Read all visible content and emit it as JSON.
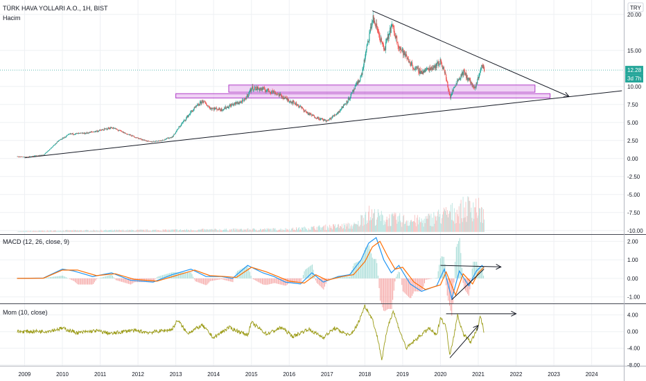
{
  "header": {
    "symbol_title": "TÜRK HAVA YOLLARI A.O., 1H, BIST",
    "volume_label": "Hacim",
    "currency_badge": "TRY"
  },
  "chart_data": [
    {
      "type": "candlestick",
      "panel": "price",
      "title": "TÜRK HAVA YOLLARI A.O., 1H, BIST",
      "ylim": [
        -10.5,
        22.0
      ],
      "y_ticks": [
        "-10.00",
        "-7.50",
        "-5.00",
        "-2.50",
        "0.00",
        "2.50",
        "5.00",
        "7.50",
        "10.00",
        "15.00",
        "20.00"
      ],
      "last_price_label": "12.28",
      "countdown_label": "3d 7h",
      "up_color": "#26a69a",
      "down_color": "#ef5350",
      "approx_close_path": [
        [
          2008.8,
          0.25
        ],
        [
          2009.0,
          0.2
        ],
        [
          2009.5,
          0.5
        ],
        [
          2009.9,
          2.5
        ],
        [
          2010.2,
          3.4
        ],
        [
          2010.6,
          3.5
        ],
        [
          2011.0,
          3.9
        ],
        [
          2011.3,
          4.3
        ],
        [
          2011.7,
          3.4
        ],
        [
          2012.0,
          2.8
        ],
        [
          2012.3,
          2.3
        ],
        [
          2012.6,
          2.5
        ],
        [
          2012.9,
          3.0
        ],
        [
          2013.1,
          4.5
        ],
        [
          2013.4,
          6.5
        ],
        [
          2013.7,
          8.0
        ],
        [
          2013.9,
          7.0
        ],
        [
          2014.2,
          6.8
        ],
        [
          2014.5,
          7.5
        ],
        [
          2014.8,
          8.0
        ],
        [
          2015.0,
          9.8
        ],
        [
          2015.3,
          9.6
        ],
        [
          2015.6,
          9.2
        ],
        [
          2015.9,
          8.3
        ],
        [
          2016.2,
          7.5
        ],
        [
          2016.5,
          6.2
        ],
        [
          2016.8,
          5.5
        ],
        [
          2017.0,
          5.2
        ],
        [
          2017.3,
          6.5
        ],
        [
          2017.6,
          8.5
        ],
        [
          2017.9,
          11.5
        ],
        [
          2018.05,
          15.5
        ],
        [
          2018.2,
          19.5
        ],
        [
          2018.35,
          17.5
        ],
        [
          2018.5,
          15.0
        ],
        [
          2018.7,
          18.5
        ],
        [
          2018.9,
          15.5
        ],
        [
          2019.1,
          14.0
        ],
        [
          2019.3,
          12.5
        ],
        [
          2019.5,
          12.0
        ],
        [
          2019.7,
          12.5
        ],
        [
          2019.9,
          13.0
        ],
        [
          2020.0,
          13.5
        ],
        [
          2020.1,
          12.0
        ],
        [
          2020.25,
          8.5
        ],
        [
          2020.4,
          10.5
        ],
        [
          2020.6,
          12.0
        ],
        [
          2020.8,
          10.5
        ],
        [
          2020.9,
          9.5
        ],
        [
          2021.0,
          11.5
        ],
        [
          2021.1,
          13.0
        ],
        [
          2021.15,
          12.3
        ]
      ],
      "annotations": {
        "rising_trendline": [
          [
            2009.0,
            0.1
          ],
          [
            2024.8,
            9.4
          ]
        ],
        "falling_trendline_arrow": [
          [
            2018.2,
            20.5
          ],
          [
            2023.4,
            8.6
          ]
        ],
        "support_rectangles": [
          {
            "x": [
              2014.4,
              2022.5
            ],
            "y": [
              10.2,
              9.2
            ]
          },
          {
            "x": [
              2013.0,
              2022.9
            ],
            "y": [
              9.0,
              8.4
            ]
          }
        ]
      },
      "volume": {
        "label": "Hacim",
        "approx_height_path": [
          [
            2008.8,
            0.02
          ],
          [
            2010.0,
            0.05
          ],
          [
            2012.0,
            0.06
          ],
          [
            2014.0,
            0.08
          ],
          [
            2016.0,
            0.1
          ],
          [
            2017.8,
            0.25
          ],
          [
            2018.0,
            0.7
          ],
          [
            2018.5,
            0.5
          ],
          [
            2019.5,
            0.4
          ],
          [
            2020.0,
            0.6
          ],
          [
            2020.5,
            0.8
          ],
          [
            2020.9,
            1.0
          ],
          [
            2021.15,
            0.6
          ]
        ]
      }
    },
    {
      "type": "line",
      "panel": "indicator",
      "title": "MACD (12, 26, close, 9)",
      "ylim": [
        -1.35,
        2.35
      ],
      "y_ticks": [
        "-1.00",
        "0.00",
        "1.00",
        "2.00"
      ],
      "series": [
        {
          "role": "macd",
          "color": "#2196f3",
          "points": [
            [
              2008.8,
              0.0
            ],
            [
              2009.5,
              0.02
            ],
            [
              2010.0,
              0.5
            ],
            [
              2010.3,
              0.4
            ],
            [
              2010.8,
              0.1
            ],
            [
              2011.3,
              0.3
            ],
            [
              2011.8,
              -0.1
            ],
            [
              2012.4,
              -0.2
            ],
            [
              2012.9,
              0.2
            ],
            [
              2013.4,
              0.5
            ],
            [
              2013.8,
              0.1
            ],
            [
              2014.2,
              0.1
            ],
            [
              2014.5,
              0.0
            ],
            [
              2014.9,
              0.7
            ],
            [
              2015.3,
              0.3
            ],
            [
              2015.6,
              0.1
            ],
            [
              2015.9,
              -0.2
            ],
            [
              2016.3,
              -0.3
            ],
            [
              2016.6,
              0.3
            ],
            [
              2016.9,
              -0.2
            ],
            [
              2017.3,
              0.1
            ],
            [
              2017.6,
              0.2
            ],
            [
              2017.9,
              1.0
            ],
            [
              2018.1,
              1.9
            ],
            [
              2018.3,
              2.2
            ],
            [
              2018.5,
              1.0
            ],
            [
              2018.7,
              0.3
            ],
            [
              2018.9,
              0.7
            ],
            [
              2019.2,
              -0.3
            ],
            [
              2019.5,
              -0.7
            ],
            [
              2019.9,
              -0.4
            ],
            [
              2020.1,
              0.5
            ],
            [
              2020.3,
              -1.1
            ],
            [
              2020.5,
              0.4
            ],
            [
              2020.75,
              -0.4
            ],
            [
              2020.95,
              0.4
            ],
            [
              2021.1,
              0.7
            ],
            [
              2021.15,
              0.55
            ]
          ]
        },
        {
          "role": "signal",
          "color": "#ff6d00",
          "points": [
            [
              2008.8,
              0.0
            ],
            [
              2009.5,
              0.01
            ],
            [
              2010.0,
              0.45
            ],
            [
              2010.4,
              0.45
            ],
            [
              2010.9,
              0.15
            ],
            [
              2011.4,
              0.25
            ],
            [
              2011.9,
              -0.05
            ],
            [
              2012.5,
              -0.15
            ],
            [
              2013.0,
              0.15
            ],
            [
              2013.5,
              0.45
            ],
            [
              2013.9,
              0.15
            ],
            [
              2014.3,
              0.1
            ],
            [
              2014.6,
              0.05
            ],
            [
              2015.0,
              0.6
            ],
            [
              2015.4,
              0.35
            ],
            [
              2015.7,
              0.1
            ],
            [
              2016.0,
              -0.15
            ],
            [
              2016.4,
              -0.25
            ],
            [
              2016.7,
              0.2
            ],
            [
              2017.0,
              -0.1
            ],
            [
              2017.4,
              0.1
            ],
            [
              2017.7,
              0.2
            ],
            [
              2018.0,
              0.9
            ],
            [
              2018.2,
              1.7
            ],
            [
              2018.4,
              2.0
            ],
            [
              2018.6,
              1.2
            ],
            [
              2018.8,
              0.5
            ],
            [
              2019.0,
              0.6
            ],
            [
              2019.3,
              -0.2
            ],
            [
              2019.6,
              -0.6
            ],
            [
              2020.0,
              -0.35
            ],
            [
              2020.15,
              0.35
            ],
            [
              2020.4,
              -0.9
            ],
            [
              2020.6,
              0.25
            ],
            [
              2020.85,
              -0.3
            ],
            [
              2021.0,
              0.3
            ],
            [
              2021.15,
              0.6
            ]
          ]
        }
      ],
      "annotations": {
        "upper_line_arrow": [
          [
            2020.0,
            0.7
          ],
          [
            2021.6,
            0.62
          ]
        ],
        "lower_line": [
          [
            2020.3,
            -1.15
          ],
          [
            2021.15,
            0.5
          ]
        ]
      }
    },
    {
      "type": "line",
      "panel": "indicator",
      "title": "Mom (10, close)",
      "ylim": [
        -8.2,
        6.6
      ],
      "y_ticks": [
        "-8.00",
        "-4.00",
        "0.00",
        "4.00"
      ],
      "series": [
        {
          "role": "momentum",
          "color": "#9a9a14",
          "points": [
            [
              2008.8,
              0.0
            ],
            [
              2009.6,
              0.1
            ],
            [
              2010.0,
              0.8
            ],
            [
              2010.4,
              -0.3
            ],
            [
              2010.9,
              0.2
            ],
            [
              2011.3,
              -0.5
            ],
            [
              2011.8,
              0.3
            ],
            [
              2012.3,
              -0.2
            ],
            [
              2012.9,
              0.5
            ],
            [
              2013.05,
              2.8
            ],
            [
              2013.3,
              -0.4
            ],
            [
              2013.7,
              1.5
            ],
            [
              2014.0,
              -1.5
            ],
            [
              2014.4,
              1.0
            ],
            [
              2014.9,
              -0.8
            ],
            [
              2015.0,
              2.2
            ],
            [
              2015.4,
              -0.6
            ],
            [
              2015.8,
              1.0
            ],
            [
              2016.1,
              -1.2
            ],
            [
              2016.5,
              0.6
            ],
            [
              2016.9,
              -1.4
            ],
            [
              2017.2,
              0.8
            ],
            [
              2017.6,
              -1.0
            ],
            [
              2017.8,
              1.5
            ],
            [
              2018.0,
              6.2
            ],
            [
              2018.2,
              3.0
            ],
            [
              2018.35,
              -2.0
            ],
            [
              2018.45,
              -6.8
            ],
            [
              2018.6,
              1.0
            ],
            [
              2018.75,
              5.0
            ],
            [
              2018.95,
              -0.5
            ],
            [
              2019.1,
              -4.0
            ],
            [
              2019.4,
              -1.5
            ],
            [
              2019.7,
              0.8
            ],
            [
              2019.9,
              -1.0
            ],
            [
              2020.0,
              3.5
            ],
            [
              2020.15,
              1.0
            ],
            [
              2020.25,
              -5.5
            ],
            [
              2020.4,
              1.0
            ],
            [
              2020.45,
              4.0
            ],
            [
              2020.6,
              -0.5
            ],
            [
              2020.8,
              -2.5
            ],
            [
              2021.0,
              1.0
            ],
            [
              2021.05,
              4.0
            ],
            [
              2021.15,
              0.0
            ]
          ]
        }
      ],
      "annotations": {
        "upper_line_arrow": [
          [
            2020.15,
            4.3
          ],
          [
            2022.0,
            4.3
          ]
        ],
        "lower_line_arrow": [
          [
            2020.25,
            -6.3
          ],
          [
            2021.0,
            1.5
          ]
        ]
      }
    }
  ],
  "time_axis": {
    "labels": [
      "2009",
      "2010",
      "2011",
      "2012",
      "2013",
      "2014",
      "2015",
      "2016",
      "2017",
      "2018",
      "2019",
      "2020",
      "2021",
      "2022",
      "2023",
      "2024"
    ],
    "range": [
      2008.35,
      2024.85
    ]
  }
}
